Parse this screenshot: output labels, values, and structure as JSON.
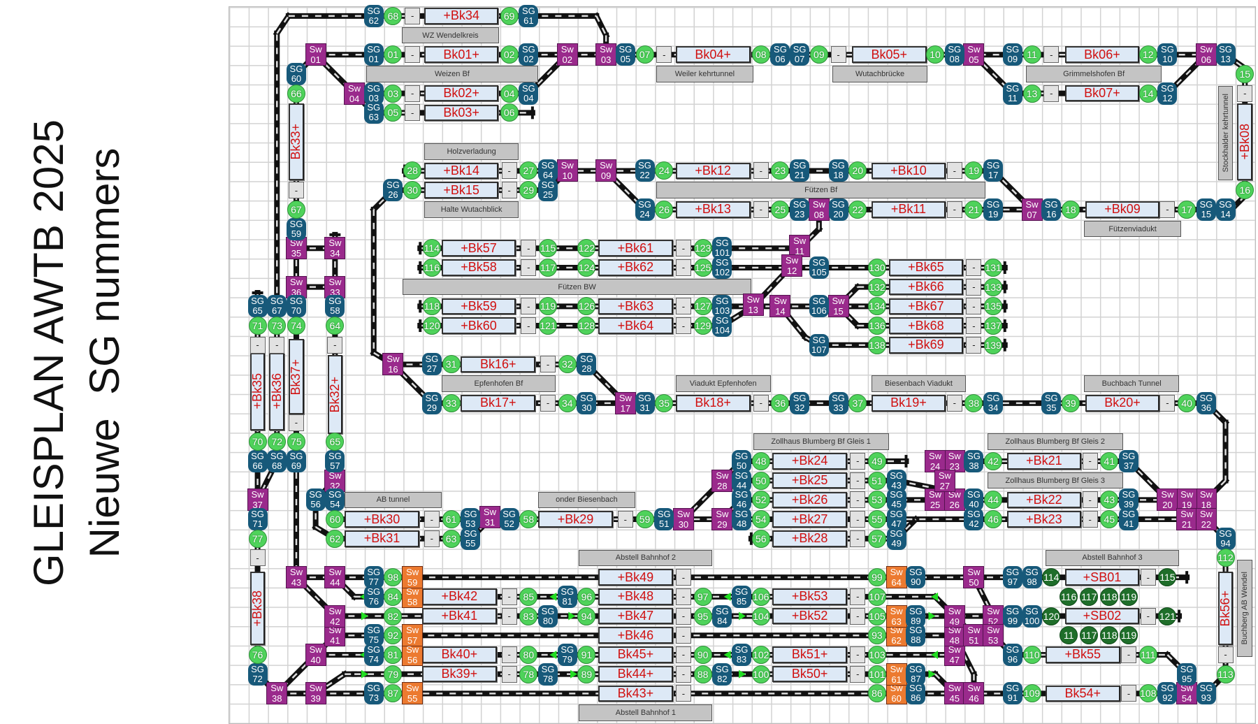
{
  "title": {
    "line1": "GLEISPLAN AWTB 2025",
    "line2": "Nieuwe  SG nummers"
  },
  "colors": {
    "sg": "#17597a",
    "signal": "#4fd35b",
    "signal_dark": "#1f6e2a",
    "switch": "#9a2a8c",
    "switch_orange": "#ec7a30",
    "block_fill": "#dde9f6",
    "block_text": "#d01010",
    "station": "#c4c4c4"
  },
  "switch_prefix": "Sw",
  "sg_prefix": "SG",
  "button_label": "-",
  "blocks": [
    "+Bk34",
    "Bk01+",
    "Bk04+",
    "Bk05+",
    "Bk06+",
    "Bk02+",
    "Bk07+",
    "Bk03+",
    "+Bk14",
    "+Bk12",
    "+Bk10",
    "+Bk15",
    "+Bk13",
    "+Bk11",
    "+Bk09",
    "+Bk57",
    "+Bk61",
    "+Bk58",
    "+Bk62",
    "+Bk65",
    "+Bk66",
    "+Bk59",
    "+Bk63",
    "+Bk67",
    "+Bk60",
    "+Bk64",
    "+Bk68",
    "+Bk69",
    "Bk16+",
    "Bk17+",
    "Bk18+",
    "Bk19+",
    "Bk20+",
    "+Bk24",
    "+Bk21",
    "+Bk25",
    "+Bk26",
    "+Bk22",
    "+Bk30",
    "+Bk29",
    "+Bk27",
    "+Bk23",
    "+Bk31",
    "+Bk28",
    "+Bk49",
    "+SB01",
    "+Bk42",
    "+Bk48",
    "+Bk53",
    "+Bk41",
    "+Bk47",
    "+Bk52",
    "+SB02",
    "+Bk46",
    "Bk40+",
    "Bk45+",
    "Bk51+",
    "+Bk55",
    "Bk39+",
    "Bk44+",
    "Bk50+",
    "Bk43+",
    "Bk54+"
  ],
  "vertical_blocks": [
    "Bk33+",
    "+Bk35",
    "+Bk36",
    "Bk37+",
    "Bk32+",
    "+Bk38",
    "+Bk08",
    "Bk56+"
  ],
  "stations": [
    "WZ Wendelkreis",
    "Weizen Bf",
    "Weiler kehrtunnel",
    "Wutachbrücke",
    "Grimmelshofen Bf",
    "Holzverladung",
    "Halte Wutachblick",
    "Fützen Bf",
    "Fützenviadukt",
    "Fützen BW",
    "Epfenhofen Bf",
    "Viadukt Epfenhofen",
    "Biesenbach Viadukt",
    "Buchbach Tunnel",
    "Zollhaus Blumberg Bf Gleis 1",
    "Zollhaus Blumberg Bf Gleis 2",
    "Zollhaus Blumberg Bf Gleis 3",
    "AB tunnel",
    "onder Biesenbach",
    "Abstell Bahnhof 2",
    "Abstell Bahnhof 3",
    "Abstell Bahnhof 1"
  ],
  "vertical_stations": [
    "Stockhalder kehrtunnel",
    "Buchberg AB Wendel"
  ],
  "switches": [
    "01",
    "02",
    "03",
    "04",
    "05",
    "06",
    "07",
    "08",
    "09",
    "10",
    "11",
    "12",
    "13",
    "14",
    "15",
    "16",
    "17",
    "18",
    "19",
    "20",
    "21",
    "22",
    "23",
    "24",
    "25",
    "26",
    "27",
    "28",
    "29",
    "30",
    "31",
    "32",
    "33",
    "34",
    "35",
    "36",
    "37",
    "38",
    "39",
    "40",
    "41",
    "42",
    "43",
    "44",
    "45",
    "46",
    "47",
    "48",
    "49",
    "50",
    "51",
    "52",
    "53",
    "54"
  ],
  "switches_orange": [
    "55",
    "56",
    "57",
    "58",
    "59",
    "60",
    "61",
    "62",
    "63",
    "64"
  ],
  "sgs": [
    "62",
    "61",
    "01",
    "02",
    "05",
    "06",
    "07",
    "08",
    "09",
    "10",
    "13",
    "60",
    "03",
    "04",
    "11",
    "12",
    "63",
    "59",
    "64",
    "22",
    "21",
    "18",
    "17",
    "26",
    "25",
    "24",
    "23",
    "20",
    "19",
    "16",
    "15",
    "14",
    "101",
    "102",
    "105",
    "103",
    "106",
    "104",
    "107",
    "65",
    "67",
    "70",
    "58",
    "27",
    "28",
    "29",
    "30",
    "31",
    "32",
    "33",
    "34",
    "35",
    "36",
    "66",
    "68",
    "69",
    "57",
    "50",
    "38",
    "37",
    "44",
    "43",
    "46",
    "45",
    "40",
    "39",
    "56",
    "54",
    "71",
    "53",
    "52",
    "51",
    "48",
    "47",
    "42",
    "41",
    "55",
    "49",
    "94",
    "77",
    "90",
    "97",
    "98",
    "76",
    "81",
    "85",
    "80",
    "84",
    "89",
    "99",
    "100",
    "75",
    "88",
    "74",
    "79",
    "83",
    "96",
    "72",
    "78",
    "82",
    "87",
    "95",
    "73",
    "86",
    "91",
    "92",
    "93"
  ],
  "signals": [
    "68",
    "69",
    "01",
    "02",
    "07",
    "08",
    "09",
    "10",
    "11",
    "12",
    "15",
    "66",
    "03",
    "04",
    "13",
    "14",
    "05",
    "06",
    "28",
    "27",
    "24",
    "23",
    "20",
    "19",
    "30",
    "29",
    "16",
    "67",
    "26",
    "25",
    "22",
    "21",
    "18",
    "17",
    "114",
    "115",
    "122",
    "123",
    "116",
    "117",
    "124",
    "125",
    "130",
    "131",
    "132",
    "133",
    "118",
    "119",
    "126",
    "127",
    "134",
    "135",
    "120",
    "121",
    "128",
    "129",
    "136",
    "137",
    "138",
    "139",
    "71",
    "73",
    "74",
    "64",
    "31",
    "32",
    "33",
    "34",
    "35",
    "36",
    "37",
    "38",
    "39",
    "40",
    "70",
    "72",
    "75",
    "65",
    "48",
    "49",
    "42",
    "41",
    "50",
    "51",
    "52",
    "53",
    "44",
    "43",
    "60",
    "61",
    "58",
    "59",
    "54",
    "55",
    "46",
    "45",
    "77",
    "62",
    "63",
    "56",
    "57",
    "112",
    "98",
    "99",
    "84",
    "85",
    "96",
    "97",
    "106",
    "107",
    "82",
    "83",
    "94",
    "95",
    "104",
    "105",
    "92",
    "93",
    "81",
    "80",
    "91",
    "90",
    "102",
    "103",
    "110",
    "111",
    "76",
    "79",
    "78",
    "89",
    "88",
    "100",
    "101",
    "113",
    "87",
    "86",
    "109",
    "108"
  ],
  "signals_dark": [
    "114",
    "115",
    "116",
    "117",
    "118",
    "119",
    "120",
    "121",
    "11",
    "117",
    "118",
    "119"
  ]
}
